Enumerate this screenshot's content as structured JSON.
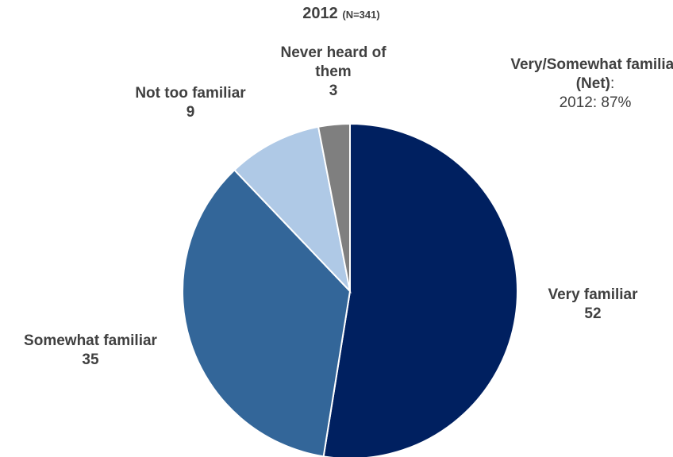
{
  "chart_data": {
    "type": "pie",
    "title": "2012",
    "subtitle": "(N=341)",
    "slices": [
      {
        "label": "Very familiar",
        "value": 52,
        "color": "#002060"
      },
      {
        "label": "Somewhat familiar",
        "value": 35,
        "color": "#336699"
      },
      {
        "label": "Not too familiar",
        "value": 9,
        "color": "#afc9e6"
      },
      {
        "label": "Never heard of them",
        "value": 3,
        "color": "#7f7f7f"
      }
    ],
    "start_angle_deg": 0,
    "direction": "clockwise",
    "annotation": {
      "title": "Very/Somewhat familiar (Net)",
      "colon": ":",
      "line": "2012:  87%"
    }
  }
}
